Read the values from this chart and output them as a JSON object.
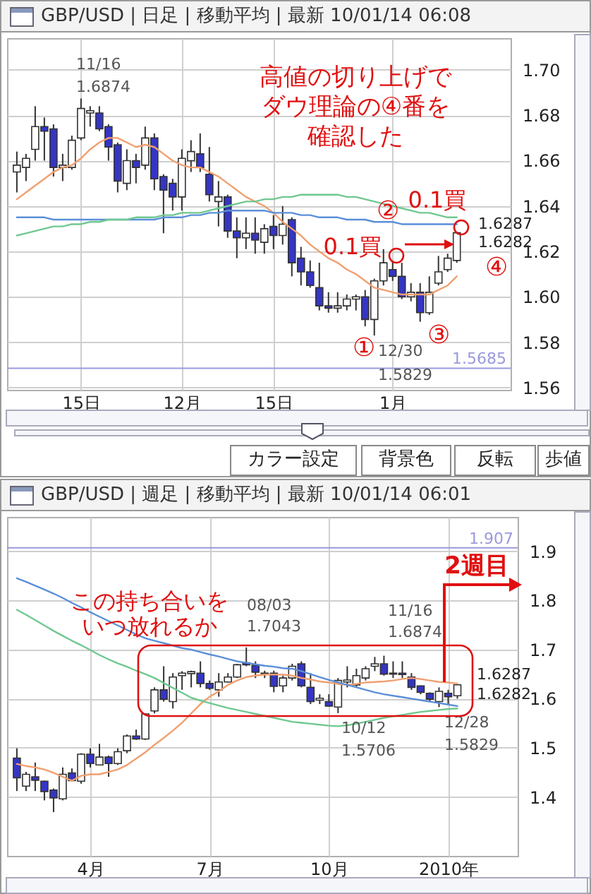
{
  "chart_data": [
    {
      "type": "candlestick",
      "title": "GBP/USD | 日足 | 移動平均 | 最新 10/01/14 06:08",
      "categories": [
        null,
        null,
        null,
        null,
        null,
        null,
        null,
        "15日",
        null,
        null,
        null,
        null,
        null,
        null,
        null,
        null,
        null,
        null,
        "12月",
        null,
        null,
        null,
        null,
        null,
        null,
        null,
        null,
        null,
        "15日",
        null,
        null,
        null,
        null,
        null,
        null,
        null,
        null,
        null,
        null,
        null,
        null,
        "1月",
        null,
        null,
        null,
        null,
        null,
        null,
        null
      ],
      "ohlc": [
        [
          1.655,
          1.664,
          1.646,
          1.658
        ],
        [
          1.657,
          1.663,
          1.651,
          1.661
        ],
        [
          1.665,
          1.684,
          1.66,
          1.675
        ],
        [
          1.675,
          1.679,
          1.66,
          1.673
        ],
        [
          1.674,
          1.676,
          1.653,
          1.657
        ],
        [
          1.657,
          1.663,
          1.651,
          1.658
        ],
        [
          1.657,
          1.671,
          1.656,
          1.669
        ],
        [
          1.67,
          1.6874,
          1.669,
          1.683
        ],
        [
          1.681,
          1.684,
          1.675,
          1.682
        ],
        [
          1.681,
          1.684,
          1.673,
          1.674
        ],
        [
          1.675,
          1.676,
          1.66,
          1.666
        ],
        [
          1.667,
          1.668,
          1.646,
          1.651
        ],
        [
          1.65,
          1.665,
          1.647,
          1.66
        ],
        [
          1.66,
          1.663,
          1.65,
          1.657
        ],
        [
          1.658,
          1.675,
          1.656,
          1.67
        ],
        [
          1.67,
          1.672,
          1.647,
          1.652
        ],
        [
          1.653,
          1.654,
          1.628,
          1.647
        ],
        [
          1.65,
          1.652,
          1.638,
          1.644
        ],
        [
          1.644,
          1.665,
          1.638,
          1.661
        ],
        [
          1.66,
          1.669,
          1.655,
          1.664
        ],
        [
          1.663,
          1.672,
          1.655,
          1.657
        ],
        [
          1.654,
          1.666,
          1.642,
          1.645
        ],
        [
          1.642,
          1.651,
          1.631,
          1.644
        ],
        [
          1.644,
          1.645,
          1.626,
          1.629
        ],
        [
          1.629,
          1.635,
          1.617,
          1.626
        ],
        [
          1.626,
          1.635,
          1.621,
          1.628
        ],
        [
          1.628,
          1.635,
          1.619,
          1.625
        ],
        [
          1.624,
          1.632,
          1.619,
          1.63
        ],
        [
          1.631,
          1.636,
          1.621,
          1.627
        ],
        [
          1.627,
          1.64,
          1.623,
          1.632
        ],
        [
          1.634,
          1.635,
          1.609,
          1.615
        ],
        [
          1.617,
          1.622,
          1.605,
          1.611
        ],
        [
          1.611,
          1.616,
          1.604,
          1.605
        ],
        [
          1.604,
          1.615,
          1.594,
          1.596
        ],
        [
          1.596,
          1.602,
          1.593,
          1.595
        ],
        [
          1.595,
          1.602,
          1.593,
          1.596
        ],
        [
          1.596,
          1.601,
          1.594,
          1.599
        ],
        [
          1.599,
          1.601,
          1.594,
          1.6
        ],
        [
          1.6,
          1.603,
          1.587,
          1.59
        ],
        [
          1.59,
          1.608,
          1.5829,
          1.607
        ],
        [
          1.607,
          1.621,
          1.605,
          1.615
        ],
        [
          1.612,
          1.616,
          1.607,
          1.609
        ],
        [
          1.609,
          1.615,
          1.599,
          1.6
        ],
        [
          1.6,
          1.606,
          1.598,
          1.602
        ],
        [
          1.602,
          1.606,
          1.589,
          1.593
        ],
        [
          1.593,
          1.609,
          1.592,
          1.602
        ],
        [
          1.606,
          1.618,
          1.605,
          1.611
        ],
        [
          1.612,
          1.619,
          1.611,
          1.617
        ],
        [
          1.616,
          1.6287,
          1.615,
          1.6282
        ]
      ],
      "series": [
        {
          "type": "line",
          "color": "#f0a070",
          "values": [
            1.643,
            1.646,
            1.649,
            1.652,
            1.655,
            1.657,
            1.658,
            1.661,
            1.665,
            1.668,
            1.67,
            1.67,
            1.668,
            1.666,
            1.667,
            1.666,
            1.663,
            1.66,
            1.658,
            1.657,
            1.657,
            1.655,
            1.653,
            1.65,
            1.647,
            1.644,
            1.642,
            1.64,
            1.637,
            1.633,
            1.63,
            1.627,
            1.623,
            1.62,
            1.617,
            1.615,
            1.612,
            1.61,
            1.607,
            1.604,
            1.603,
            1.602,
            1.601,
            1.601,
            1.601,
            1.601,
            1.603,
            1.605,
            1.609
          ]
        },
        {
          "type": "line",
          "color": "#5b8fd8",
          "values": [
            1.635,
            1.635,
            1.635,
            1.635,
            1.634,
            1.634,
            1.634,
            1.634,
            1.634,
            1.634,
            1.634,
            1.634,
            1.634,
            1.634,
            1.634,
            1.634,
            1.635,
            1.635,
            1.635,
            1.636,
            1.636,
            1.637,
            1.637,
            1.638,
            1.638,
            1.638,
            1.638,
            1.638,
            1.637,
            1.637,
            1.637,
            1.636,
            1.636,
            1.635,
            1.635,
            1.635,
            1.634,
            1.634,
            1.634,
            1.633,
            1.633,
            1.633,
            1.632,
            1.632,
            1.632,
            1.632,
            1.632,
            1.632,
            1.632
          ]
        },
        {
          "type": "line",
          "color": "#70c890",
          "values": [
            1.627,
            1.628,
            1.629,
            1.63,
            1.631,
            1.631,
            1.632,
            1.632,
            1.633,
            1.633,
            1.634,
            1.634,
            1.634,
            1.635,
            1.635,
            1.635,
            1.636,
            1.636,
            1.637,
            1.637,
            1.637,
            1.638,
            1.639,
            1.64,
            1.641,
            1.642,
            1.642,
            1.643,
            1.643,
            1.644,
            1.644,
            1.645,
            1.645,
            1.645,
            1.645,
            1.645,
            1.644,
            1.644,
            1.643,
            1.642,
            1.641,
            1.64,
            1.639,
            1.638,
            1.637,
            1.637,
            1.636,
            1.635,
            1.635
          ]
        }
      ],
      "ylim": [
        1.559,
        1.714
      ],
      "yticks": [
        1.56,
        1.58,
        {
          "value": 1.6,
          "label": "1.60"
        },
        1.62,
        1.64,
        1.66,
        1.68,
        {
          "value": 1.7,
          "label": "1.70"
        }
      ],
      "grid": true,
      "ref_lines": [
        {
          "axis": "y",
          "value": 1.5685,
          "label": "1.5685",
          "color": "#9999dd"
        }
      ],
      "annotations": [
        "11/16\n1.6874",
        "高値の切り上げでダウ理論の④番を確認した",
        "0.1買",
        "0.1買",
        "②",
        "①",
        "③",
        "④",
        "12/30\n1.5829",
        "1.6287",
        "1.6282",
        "カラー設定",
        "背景色",
        "反転",
        "歩値"
      ]
    },
    {
      "type": "candlestick",
      "title": "GBP/USD | 週足 | 移動平均 | 最新 10/01/14 06:01",
      "categories": [
        null,
        null,
        null,
        null,
        null,
        null,
        null,
        null,
        "4月",
        null,
        null,
        null,
        null,
        null,
        null,
        null,
        null,
        null,
        null,
        null,
        null,
        "7月",
        null,
        null,
        null,
        null,
        null,
        null,
        null,
        null,
        null,
        null,
        null,
        null,
        "10月",
        null,
        null,
        null,
        null,
        null,
        null,
        null,
        null,
        null,
        null,
        null,
        null,
        "2010年",
        null
      ],
      "ohlc": [
        [
          1.479,
          1.499,
          1.412,
          1.439
        ],
        [
          1.422,
          1.451,
          1.412,
          1.446
        ],
        [
          1.441,
          1.47,
          1.412,
          1.434
        ],
        [
          1.432,
          1.433,
          1.393,
          1.411
        ],
        [
          1.414,
          1.417,
          1.369,
          1.398
        ],
        [
          1.396,
          1.46,
          1.393,
          1.446
        ],
        [
          1.449,
          1.458,
          1.432,
          1.433
        ],
        [
          1.432,
          1.489,
          1.427,
          1.487
        ],
        [
          1.487,
          1.499,
          1.46,
          1.468
        ],
        [
          1.465,
          1.508,
          1.464,
          1.481
        ],
        [
          1.481,
          1.484,
          1.441,
          1.468
        ],
        [
          1.468,
          1.499,
          1.465,
          1.492
        ],
        [
          1.494,
          1.527,
          1.489,
          1.524
        ],
        [
          1.524,
          1.537,
          1.516,
          1.518
        ],
        [
          1.518,
          1.57,
          1.516,
          1.569
        ],
        [
          1.575,
          1.623,
          1.57,
          1.618
        ],
        [
          1.618,
          1.666,
          1.594,
          1.599
        ],
        [
          1.594,
          1.652,
          1.58,
          1.644
        ],
        [
          1.647,
          1.656,
          1.618,
          1.652
        ],
        [
          1.651,
          1.657,
          1.623,
          1.655
        ],
        [
          1.652,
          1.676,
          1.623,
          1.631
        ],
        [
          1.631,
          1.637,
          1.618,
          1.621
        ],
        [
          1.618,
          1.652,
          1.604,
          1.634
        ],
        [
          1.634,
          1.652,
          1.633,
          1.644
        ],
        [
          1.644,
          1.671,
          1.642,
          1.669
        ],
        [
          1.673,
          1.7043,
          1.666,
          1.669
        ],
        [
          1.668,
          1.676,
          1.642,
          1.654
        ],
        [
          1.65,
          1.657,
          1.642,
          1.652
        ],
        [
          1.652,
          1.657,
          1.613,
          1.625
        ],
        [
          1.626,
          1.647,
          1.613,
          1.642
        ],
        [
          1.642,
          1.671,
          1.637,
          1.666
        ],
        [
          1.671,
          1.676,
          1.623,
          1.626
        ],
        [
          1.623,
          1.652,
          1.589,
          1.594
        ],
        [
          1.597,
          1.609,
          1.589,
          1.601
        ],
        [
          1.594,
          1.609,
          1.584,
          1.585
        ],
        [
          1.583,
          1.642,
          1.5706,
          1.637
        ],
        [
          1.634,
          1.666,
          1.623,
          1.638
        ],
        [
          1.628,
          1.661,
          1.623,
          1.647
        ],
        [
          1.642,
          1.666,
          1.637,
          1.661
        ],
        [
          1.666,
          1.685,
          1.656,
          1.671
        ],
        [
          1.671,
          1.6874,
          1.647,
          1.65
        ],
        [
          1.652,
          1.676,
          1.642,
          1.65
        ],
        [
          1.652,
          1.676,
          1.642,
          1.649
        ],
        [
          1.644,
          1.652,
          1.618,
          1.623
        ],
        [
          1.626,
          1.627,
          1.609,
          1.613
        ],
        [
          1.611,
          1.613,
          1.594,
          1.599
        ],
        [
          1.594,
          1.623,
          1.5829,
          1.615
        ],
        [
          1.611,
          1.618,
          1.589,
          1.604
        ],
        [
          1.606,
          1.6287,
          1.6,
          1.6282
        ]
      ],
      "series": [
        {
          "type": "line",
          "color": "#f0a070",
          "values": [
            1.467,
            1.463,
            1.46,
            1.456,
            1.449,
            1.441,
            1.433,
            1.443,
            1.446,
            1.446,
            1.451,
            1.456,
            1.465,
            1.478,
            1.491,
            1.506,
            1.52,
            1.535,
            1.551,
            1.57,
            1.589,
            1.604,
            1.615,
            1.628,
            1.637,
            1.644,
            1.647,
            1.649,
            1.649,
            1.649,
            1.647,
            1.642,
            1.639,
            1.635,
            1.633,
            1.63,
            1.628,
            1.63,
            1.633,
            1.634,
            1.635,
            1.637,
            1.64,
            1.642,
            1.64,
            1.637,
            1.634,
            1.633,
            1.631
          ]
        },
        {
          "type": "line",
          "color": "#5b8fd8",
          "values": [
            1.845,
            1.838,
            1.83,
            1.822,
            1.814,
            1.805,
            1.795,
            1.786,
            1.776,
            1.767,
            1.758,
            1.749,
            1.74,
            1.731,
            1.723,
            1.718,
            1.713,
            1.708,
            1.703,
            1.7,
            1.695,
            1.69,
            1.686,
            1.681,
            1.676,
            1.673,
            1.67,
            1.667,
            1.665,
            1.662,
            1.661,
            1.656,
            1.65,
            1.644,
            1.638,
            1.633,
            1.628,
            1.623,
            1.618,
            1.613,
            1.609,
            1.606,
            1.603,
            1.6,
            1.597,
            1.594,
            1.591,
            1.588,
            1.585
          ]
        },
        {
          "type": "line",
          "color": "#70c890",
          "values": [
            1.781,
            1.771,
            1.76,
            1.749,
            1.738,
            1.728,
            1.718,
            1.709,
            1.699,
            1.689,
            1.68,
            1.672,
            1.665,
            1.657,
            1.65,
            1.642,
            1.632,
            1.622,
            1.612,
            1.602,
            1.596,
            1.591,
            1.586,
            1.581,
            1.577,
            1.573,
            1.569,
            1.565,
            1.561,
            1.557,
            1.553,
            1.551,
            1.549,
            1.547,
            1.545,
            1.544,
            1.546,
            1.549,
            1.553,
            1.557,
            1.561,
            1.564,
            1.567,
            1.57,
            1.573,
            1.575,
            1.577,
            1.579,
            1.58
          ]
        }
      ],
      "ylim": [
        1.28,
        1.97
      ],
      "yticks": [
        1.4,
        1.5,
        1.6,
        1.7,
        1.8,
        1.9
      ],
      "grid": true,
      "ref_lines": [
        {
          "axis": "y",
          "value": 1.907,
          "label": "1.907",
          "color": "#9999dd"
        }
      ],
      "annotations": [
        "この持ち合いをいつ放れるか",
        "08/03\n1.7043",
        "11/16\n1.6874",
        "10/12\n1.5706",
        "12/28\n1.5829",
        "1.6287",
        "1.6282",
        "2週目"
      ]
    }
  ]
}
